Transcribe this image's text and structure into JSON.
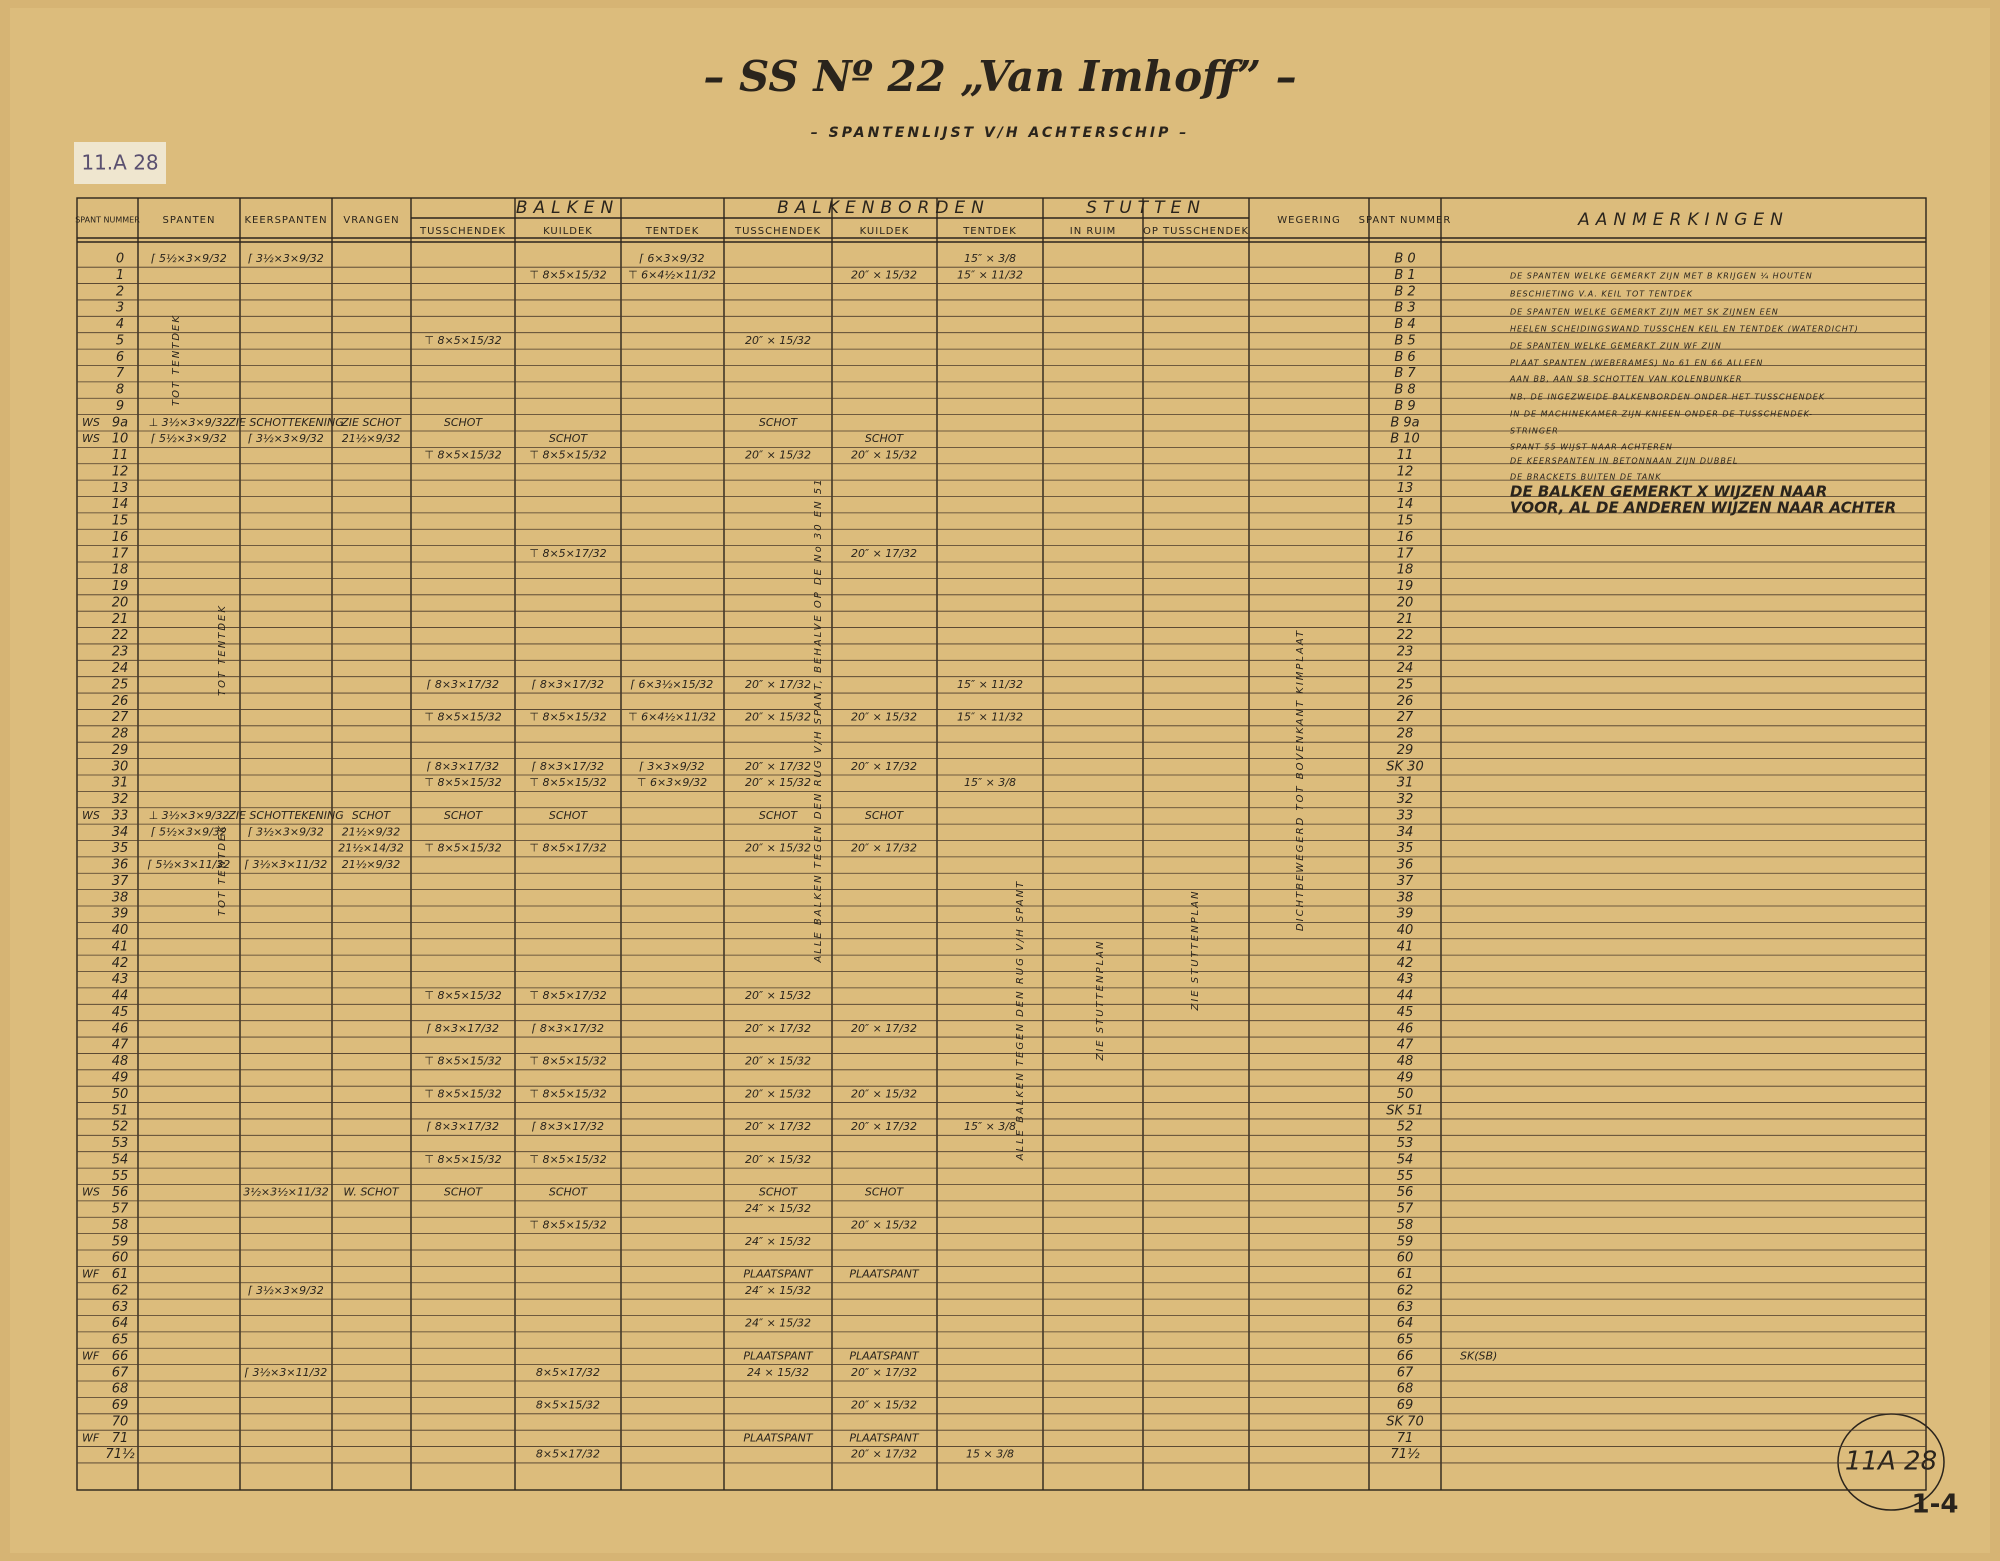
{
  "header": {
    "title": "– SS Nº 22 „Van Imhoff” –",
    "subtitle": "– SPANTENLIJST V/H ACHTERSCHIP –",
    "stamp": "11.A 28",
    "corner_stamp": "11A 28",
    "sheet": "1-4"
  },
  "table": {
    "columns": {
      "nr": "SPANT NUMMER",
      "sp": "SPANTEN",
      "ks": "KEERSPANTEN",
      "vr": "VRANGEN",
      "balken": "BALKEN",
      "bt": "TUSSCHENDEK",
      "bk": "KUILDEK",
      "bte": "TENTDEK",
      "balkenborden": "BALKENBORDEN",
      "bbt": "TUSSCHENDEK",
      "bbk": "KUILDEK",
      "bbte": "TENTDEK",
      "stutten": "STUTTEN",
      "si": "IN RUIM",
      "so": "OP TUSSCHENDEK",
      "we": "WEGERING",
      "rn": "SPANT NUMMER",
      "am": "AANMERKINGEN"
    },
    "rows": [
      {
        "nr": "0",
        "sp": "⌈ 5½×3×9/32",
        "ks": "⌈ 3½×3×9/32",
        "bte": "⌈ 6×3×9/32",
        "bbte": "15″ × 3/8",
        "rn": "B 0"
      },
      {
        "nr": "1",
        "bk": "⊤ 8×5×15/32",
        "bte": "⊤ 6×4½×11/32",
        "bbk": "20″ × 15/32",
        "bbte": "15″ × 11/32",
        "rn": "B 1"
      },
      {
        "nr": "2",
        "rn": "B 2"
      },
      {
        "nr": "3",
        "rn": "B 3"
      },
      {
        "nr": "4",
        "rn": "B 4"
      },
      {
        "nr": "5",
        "bt": "⊤ 8×5×15/32",
        "bbt": "20″ × 15/32",
        "rn": "B 5"
      },
      {
        "nr": "6",
        "rn": "B 6"
      },
      {
        "nr": "7",
        "rn": "B 7"
      },
      {
        "nr": "8",
        "rn": "B 8"
      },
      {
        "nr": "9",
        "rn": "B 9"
      },
      {
        "pre": "WS",
        "nr": "9a",
        "sp": "⊥ 3½×3×9/32",
        "ks": "ZIE SCHOTTEKENING",
        "vr": "ZIE SCHOT",
        "bt": "SCHOT",
        "bbt": "SCHOT",
        "rn": "B 9a"
      },
      {
        "pre": "WS",
        "nr": "10",
        "sp": "⌈ 5½×3×9/32",
        "ks": "⌈ 3½×3×9/32",
        "vr": "21½×9/32",
        "bk": "SCHOT",
        "bbk": "SCHOT",
        "rn": "B 10"
      },
      {
        "nr": "11",
        "bt": "⊤ 8×5×15/32",
        "bk": "⊤ 8×5×15/32",
        "bbt": "20″ × 15/32",
        "bbk": "20″ × 15/32",
        "rn": "11"
      },
      {
        "nr": "12",
        "rn": "12"
      },
      {
        "nr": "13",
        "rn": "13"
      },
      {
        "nr": "14",
        "rn": "14"
      },
      {
        "nr": "15",
        "rn": "15"
      },
      {
        "nr": "16",
        "rn": "16"
      },
      {
        "nr": "17",
        "bk": "⊤ 8×5×17/32",
        "bbk": "20″ × 17/32",
        "rn": "17"
      },
      {
        "nr": "18",
        "rn": "18"
      },
      {
        "nr": "19",
        "rn": "19"
      },
      {
        "nr": "20",
        "rn": "20"
      },
      {
        "nr": "21",
        "rn": "21"
      },
      {
        "nr": "22",
        "rn": "22"
      },
      {
        "nr": "23",
        "rn": "23"
      },
      {
        "nr": "24",
        "rn": "24"
      },
      {
        "nr": "25",
        "bt": "⌈ 8×3×17/32",
        "bk": "⌈ 8×3×17/32",
        "bte": "⌈ 6×3½×15/32",
        "bbt": "20″ × 17/32",
        "bbte": "15″ × 11/32",
        "rn": "25"
      },
      {
        "nr": "26",
        "rn": "26"
      },
      {
        "nr": "27",
        "bt": "⊤ 8×5×15/32",
        "bk": "⊤ 8×5×15/32",
        "bte": "⊤ 6×4½×11/32",
        "bbt": "20″ × 15/32",
        "bbk": "20″ × 15/32",
        "bbte": "15″ × 11/32",
        "rn": "27"
      },
      {
        "nr": "28",
        "rn": "28"
      },
      {
        "nr": "29",
        "rn": "29"
      },
      {
        "nr": "30",
        "bt": "⌈ 8×3×17/32",
        "bk": "⌈ 8×3×17/32",
        "bte": "⌈ 3×3×9/32",
        "bbt": "20″ × 17/32",
        "bbk": "20″ × 17/32",
        "rn": "SK 30"
      },
      {
        "nr": "31",
        "bt": "⊤ 8×5×15/32",
        "bk": "⊤ 8×5×15/32",
        "bte": "⊤ 6×3×9/32",
        "bbt": "20″ × 15/32",
        "bbte": "15″ × 3/8",
        "rn": "31"
      },
      {
        "nr": "32",
        "rn": "32"
      },
      {
        "pre": "WS",
        "nr": "33",
        "sp": "⊥ 3½×3×9/32",
        "ks": "ZIE SCHOTTEKENING",
        "vr": "SCHOT",
        "bt": "SCHOT",
        "bk": "SCHOT",
        "bbt": "SCHOT",
        "bbk": "SCHOT",
        "rn": "33"
      },
      {
        "nr": "34",
        "sp": "⌈ 5½×3×9/32",
        "ks": "⌈ 3½×3×9/32",
        "vr": "21½×9/32",
        "rn": "34"
      },
      {
        "nr": "35",
        "vr": "21½×14/32",
        "bt": "⊤ 8×5×15/32",
        "bk": "⊤ 8×5×17/32",
        "bbt": "20″ × 15/32",
        "bbk": "20″ × 17/32",
        "rn": "35"
      },
      {
        "nr": "36",
        "sp": "⌈ 5½×3×11/32",
        "ks": "⌈ 3½×3×11/32",
        "vr": "21½×9/32",
        "rn": "36"
      },
      {
        "nr": "37",
        "rn": "37"
      },
      {
        "nr": "38",
        "rn": "38"
      },
      {
        "nr": "39",
        "rn": "39"
      },
      {
        "nr": "40",
        "rn": "40"
      },
      {
        "nr": "41",
        "rn": "41"
      },
      {
        "nr": "42",
        "rn": "42"
      },
      {
        "nr": "43",
        "rn": "43"
      },
      {
        "nr": "44",
        "bt": "⊤ 8×5×15/32",
        "bk": "⊤ 8×5×17/32",
        "bbt": "20″ × 15/32",
        "rn": "44"
      },
      {
        "nr": "45",
        "rn": "45"
      },
      {
        "nr": "46",
        "bt": "⌈ 8×3×17/32",
        "bk": "⌈ 8×3×17/32",
        "bbt": "20″ × 17/32",
        "bbk": "20″ × 17/32",
        "rn": "46"
      },
      {
        "nr": "47",
        "rn": "47"
      },
      {
        "nr": "48",
        "bt": "⊤ 8×5×15/32",
        "bk": "⊤ 8×5×15/32",
        "bbt": "20″ × 15/32",
        "rn": "48"
      },
      {
        "nr": "49",
        "rn": "49"
      },
      {
        "nr": "50",
        "bt": "⊤ 8×5×15/32",
        "bk": "⊤ 8×5×15/32",
        "bbt": "20″ × 15/32",
        "bbk": "20″ × 15/32",
        "rn": "50"
      },
      {
        "nr": "51",
        "rn": "SK 51"
      },
      {
        "nr": "52",
        "bt": "⌈ 8×3×17/32",
        "bk": "⌈ 8×3×17/32",
        "bbt": "20″ × 17/32",
        "bbk": "20″ × 17/32",
        "bbte": "15″ × 3/8",
        "rn": "52"
      },
      {
        "nr": "53",
        "rn": "53"
      },
      {
        "nr": "54",
        "bt": "⊤ 8×5×15/32",
        "bk": "⊤ 8×5×15/32",
        "bbt": "20″ × 15/32",
        "rn": "54"
      },
      {
        "nr": "55",
        "rn": "55"
      },
      {
        "pre": "WS",
        "nr": "56",
        "ks": "3½×3½×11/32",
        "vr": "W. SCHOT",
        "bt": "SCHOT",
        "bk": "SCHOT",
        "bbt": "SCHOT",
        "bbk": "SCHOT",
        "rn": "56"
      },
      {
        "nr": "57",
        "bbt": "24″ × 15/32",
        "rn": "57"
      },
      {
        "nr": "58",
        "bk": "⊤ 8×5×15/32",
        "bbk": "20″ × 15/32",
        "rn": "58"
      },
      {
        "nr": "59",
        "bbt": "24″ × 15/32",
        "rn": "59"
      },
      {
        "nr": "60",
        "rn": "60"
      },
      {
        "pre": "WF",
        "nr": "61",
        "bbt": "PLAATSPANT",
        "bbk": "PLAATSPANT",
        "rn": "61"
      },
      {
        "nr": "62",
        "ks": "⌈ 3½×3×9/32",
        "bbt": "24″ × 15/32",
        "rn": "62"
      },
      {
        "nr": "63",
        "rn": "63"
      },
      {
        "nr": "64",
        "bbt": "24″ × 15/32",
        "rn": "64"
      },
      {
        "nr": "65",
        "rn": "65"
      },
      {
        "pre": "WF",
        "nr": "66",
        "bbt": "PLAATSPANT",
        "bbk": "PLAATSPANT",
        "rn": "66",
        "note": "SK(SB)"
      },
      {
        "nr": "67",
        "ks": "⌈ 3½×3×11/32",
        "bk": "8×5×17/32",
        "bbt": "24 × 15/32",
        "bbk": "20″ × 17/32",
        "rn": "67"
      },
      {
        "nr": "68",
        "rn": "68"
      },
      {
        "nr": "69",
        "bk": "8×5×15/32",
        "bbk": "20″ × 15/32",
        "rn": "69"
      },
      {
        "nr": "70",
        "rn": "SK 70"
      },
      {
        "pre": "WF",
        "nr": "71",
        "bbt": "PLAATSPANT",
        "bbk": "PLAATSPANT",
        "rn": "71"
      },
      {
        "nr": "71½",
        "bk": "8×5×17/32",
        "bbk": "20″ × 17/32",
        "bbte": "15 × 3/8",
        "rn": "71½"
      }
    ],
    "remarks": [
      "DE SPANTEN WELKE GEMERKT ZIJN MET B KRIJGEN ¼ HOUTEN",
      "BESCHIETING V.A. KEIL TOT TENTDEK",
      "DE SPANTEN WELKE GEMERKT ZIJN MET SK ZIJNEN EEN",
      "HEELEN SCHEIDINGSWAND TUSSCHEN KEIL EN TENTDEK (WATERDICHT)",
      "DE SPANTEN WELKE GEMERKT ZIJN WF ZIJN",
      "PLAAT SPANTEN (WEBFRAMES) No 61 EN 66 ALLEEN",
      "AAN BB, AAN SB SCHOTTEN VAN KOLENBUNKER",
      "NB. DE INGEZWEIDE BALKENBORDEN ONDER HET TUSSCHENDEK",
      "IN DE MACHINEKAMER ZIJN KNIEEN ONDER DE TUSSCHENDEK-",
      "STRINGER",
      "SPANT 55 WIJST NAAR ACHTEREN",
      "DE KEERSPANTEN IN BETONNAAN ZIJN DUBBEL",
      "DE BRACKETS BUITEN DE TANK",
      "DE BALKEN GEMERKT X WIJZEN NAAR",
      "VOOR, AL DE ANDEREN WIJZEN NAAR ACHTER"
    ],
    "annotations": [
      "TOT TENTDEK",
      "TOT TENTDEK",
      "TOT TENTDEK",
      "ZIE STUTTENPLAN",
      "ZIE STUTTENPLAN",
      "ALLE BALKEN TEGEN DEN RUG V/H SPANT",
      "ALLE BALKEN TEGEN DEN RUG V/H SPANT, BEHALVE OP DE No 30 EN 51",
      "DICHTBEWEGERD TOT BOVENKANT KIMPLAAT"
    ]
  }
}
